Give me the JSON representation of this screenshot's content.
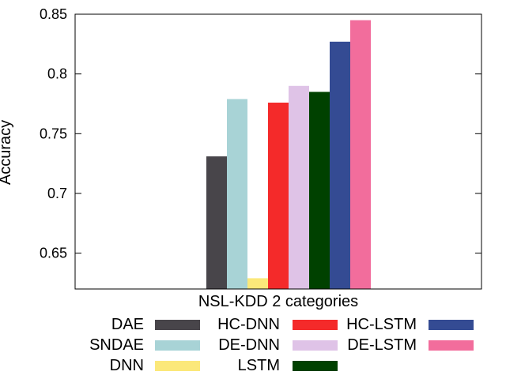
{
  "chart_data": {
    "type": "bar",
    "categories": [
      "NSL-KDD 2 categories"
    ],
    "xlabel": "NSL-KDD 2 categories",
    "ylabel": "Accuracy",
    "ylim": [
      0.62,
      0.85
    ],
    "yticks": [
      {
        "value": 0.65,
        "label": "0.65"
      },
      {
        "value": 0.7,
        "label": "0.7"
      },
      {
        "value": 0.75,
        "label": "0.75"
      },
      {
        "value": 0.8,
        "label": "0.8"
      },
      {
        "value": 0.85,
        "label": "0.85"
      }
    ],
    "grid": false,
    "legend_placement": "bottom",
    "series": [
      {
        "name": "DAE",
        "values": [
          0.731
        ],
        "color": "#48454a"
      },
      {
        "name": "SNDAE",
        "values": [
          0.779
        ],
        "color": "#a8d3d6"
      },
      {
        "name": "DNN",
        "values": [
          0.629
        ],
        "color": "#fbe87a"
      },
      {
        "name": "HC-DNN",
        "values": [
          0.776
        ],
        "color": "#f42a2a"
      },
      {
        "name": "DE-DNN",
        "values": [
          0.79
        ],
        "color": "#dfc3e7"
      },
      {
        "name": "LSTM",
        "values": [
          0.785
        ],
        "color": "#004100"
      },
      {
        "name": "HC-LSTM",
        "values": [
          0.827
        ],
        "color": "#344b93"
      },
      {
        "name": "DE-LSTM",
        "values": [
          0.845
        ],
        "color": "#f26d9c"
      }
    ]
  }
}
